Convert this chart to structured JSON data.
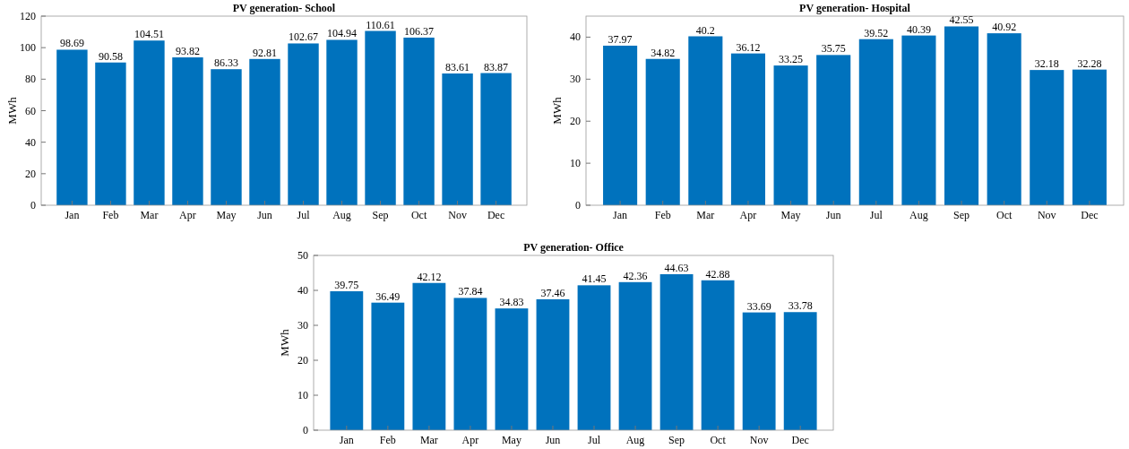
{
  "chart_data": [
    {
      "type": "bar",
      "title": "PV generation- School",
      "ylabel": "MWh",
      "categories": [
        "Jan",
        "Feb",
        "Mar",
        "Apr",
        "May",
        "Jun",
        "Jul",
        "Aug",
        "Sep",
        "Oct",
        "Nov",
        "Dec"
      ],
      "values": [
        98.69,
        90.58,
        104.51,
        93.82,
        86.33,
        92.81,
        102.67,
        104.94,
        110.61,
        106.37,
        83.61,
        83.87
      ],
      "color": "#0072bd",
      "ylim": [
        0,
        120
      ],
      "yticks": [
        0,
        20,
        40,
        60,
        80,
        100,
        120
      ],
      "data_labels": true,
      "grid": false
    },
    {
      "type": "bar",
      "title": "PV generation- Hospital",
      "ylabel": "MWh",
      "categories": [
        "Jan",
        "Feb",
        "Mar",
        "Apr",
        "May",
        "Jun",
        "Jul",
        "Aug",
        "Sep",
        "Oct",
        "Nov",
        "Dec"
      ],
      "values": [
        37.97,
        34.82,
        40.2,
        36.12,
        33.25,
        35.75,
        39.52,
        40.39,
        42.55,
        40.92,
        32.18,
        32.28
      ],
      "color": "#0072bd",
      "ylim": [
        0,
        45
      ],
      "yticks": [
        0,
        10,
        20,
        30,
        40
      ],
      "data_labels": true,
      "grid": false
    },
    {
      "type": "bar",
      "title": "PV generation- Office",
      "ylabel": "MWh",
      "categories": [
        "Jan",
        "Feb",
        "Mar",
        "Apr",
        "May",
        "Jun",
        "Jul",
        "Aug",
        "Sep",
        "Oct",
        "Nov",
        "Dec"
      ],
      "values": [
        39.75,
        36.49,
        42.12,
        37.84,
        34.83,
        37.46,
        41.45,
        42.36,
        44.63,
        42.88,
        33.69,
        33.78
      ],
      "color": "#0072bd",
      "ylim": [
        0,
        50
      ],
      "yticks": [
        0,
        10,
        20,
        30,
        40,
        50
      ],
      "data_labels": true,
      "grid": false
    }
  ]
}
